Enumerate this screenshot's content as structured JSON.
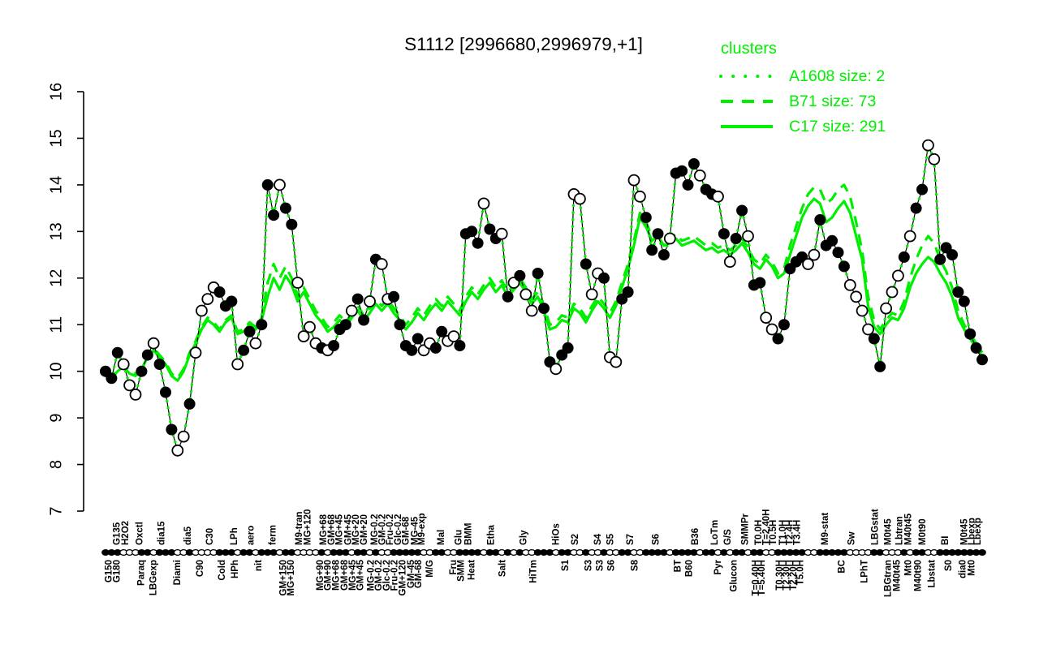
{
  "title": "S1112 [2996680,2996979,+1]",
  "legend": {
    "heading": "clusters",
    "items": [
      {
        "label": "A1608 size: 2",
        "style": "dotted"
      },
      {
        "label": "B71 size: 73",
        "style": "dashed"
      },
      {
        "label": "C17 size: 291",
        "style": "solid"
      }
    ]
  },
  "colors": {
    "cluster_green": "#00ee00",
    "series_black": "#000000",
    "point_open_fill": "#ffffff",
    "background": "#ffffff"
  },
  "chart_data": {
    "type": "line",
    "title": "S1112 [2996680,2996979,+1]",
    "ylim": [
      7,
      16
    ],
    "yticks": [
      7,
      8,
      9,
      10,
      11,
      12,
      13,
      14,
      15,
      16
    ],
    "grid": false,
    "legend_position": "top-right",
    "main_series": {
      "name": "S1112",
      "marker": "circle",
      "fills": "fffoooffofffoofoooofffoffofffoffoooofofffoffofoofffffooffooffffoffofofoofffoffoofoofooffooffffoffffoffofoffoffoofffffoofffffooooffooofoffooff",
      "values": [
        10.0,
        9.85,
        10.4,
        10.15,
        9.7,
        9.5,
        10.0,
        10.35,
        10.6,
        10.15,
        9.55,
        8.75,
        8.3,
        8.6,
        9.3,
        10.4,
        11.3,
        11.55,
        11.8,
        11.7,
        11.4,
        11.5,
        10.15,
        10.45,
        10.85,
        10.6,
        11.0,
        14.0,
        13.35,
        14.0,
        13.5,
        13.15,
        11.9,
        10.75,
        10.95,
        10.6,
        10.5,
        10.45,
        10.55,
        10.9,
        11.0,
        11.3,
        11.55,
        11.1,
        11.5,
        12.4,
        12.3,
        11.55,
        11.6,
        11.0,
        10.55,
        10.45,
        10.7,
        10.45,
        10.6,
        10.5,
        10.85,
        10.65,
        10.75,
        10.55,
        12.95,
        13.0,
        12.75,
        13.6,
        13.05,
        12.85,
        12.95,
        11.6,
        11.9,
        12.05,
        11.65,
        11.3,
        12.1,
        11.35,
        10.2,
        10.05,
        10.35,
        10.5,
        13.8,
        13.7,
        12.3,
        11.65,
        12.1,
        12.0,
        10.3,
        10.2,
        11.55,
        11.7,
        14.1,
        13.75,
        13.3,
        12.6,
        12.95,
        12.5,
        12.85,
        14.25,
        14.3,
        14.0,
        14.45,
        14.2,
        13.9,
        13.8,
        13.75,
        12.95,
        12.35,
        12.85,
        13.45,
        12.9,
        11.85,
        11.9,
        11.15,
        10.9,
        10.7,
        11.0,
        12.2,
        12.35,
        12.45,
        12.3,
        12.5,
        13.25,
        12.7,
        12.8,
        12.55,
        12.25,
        11.85,
        11.6,
        11.3,
        10.9,
        10.7,
        10.1,
        11.35,
        11.7,
        12.05,
        12.45,
        12.9,
        13.5,
        13.9,
        14.85,
        14.55,
        12.4,
        12.65,
        12.5,
        11.7,
        11.5,
        10.8,
        10.5,
        10.25
      ]
    },
    "series": [
      {
        "name": "A1608",
        "size": 2,
        "style": "dotted",
        "values": [
          10.0,
          9.85,
          10.4,
          10.15,
          9.7,
          9.5,
          10.0,
          10.35,
          10.6,
          10.15,
          9.55,
          8.75,
          8.3,
          8.6,
          9.3,
          10.4,
          11.3,
          11.55,
          11.8,
          11.7,
          11.4,
          11.5,
          10.15,
          10.45,
          10.85,
          10.6,
          11.0,
          14.0,
          13.35,
          14.0,
          13.5,
          13.15,
          11.9,
          10.75,
          10.95,
          10.6,
          10.5,
          10.45,
          10.55,
          10.9,
          11.0,
          11.3,
          11.55,
          11.1,
          11.5,
          12.4,
          12.3,
          11.55,
          11.6,
          11.0,
          10.55,
          10.45,
          10.7,
          10.45,
          10.6,
          10.5,
          10.85,
          10.65,
          10.75,
          10.55,
          12.95,
          13.0,
          12.75,
          13.6,
          13.05,
          12.85,
          12.95,
          11.6,
          11.9,
          12.05,
          11.65,
          11.3,
          12.1,
          11.35,
          10.2,
          10.05,
          10.35,
          10.5,
          13.8,
          13.7,
          12.3,
          11.65,
          12.1,
          12.0,
          10.3,
          10.2,
          11.55,
          11.7,
          14.1,
          13.75,
          13.3,
          12.6,
          12.95,
          12.5,
          12.85,
          14.25,
          14.3,
          14.0,
          14.45,
          14.2,
          13.9,
          13.8,
          13.75,
          12.95,
          12.35,
          12.85,
          13.45,
          12.9,
          11.85,
          11.9,
          11.15,
          10.9,
          10.7,
          11.0,
          12.2,
          12.35,
          12.45,
          12.3,
          12.5,
          13.25,
          12.7,
          12.8,
          12.55,
          12.25,
          11.85,
          11.6,
          11.3,
          10.9,
          10.7,
          10.1,
          11.35,
          11.7,
          12.05,
          12.45,
          12.9,
          13.5,
          13.9,
          14.85,
          14.55,
          12.4,
          12.65,
          12.5,
          11.7,
          11.5,
          10.8,
          10.5,
          10.25
        ]
      },
      {
        "name": "B71",
        "size": 73,
        "style": "dashed",
        "values": [
          9.95,
          9.9,
          10.05,
          10.15,
          10.0,
          9.95,
          10.1,
          10.35,
          10.5,
          10.35,
          10.2,
          9.95,
          9.85,
          10.05,
          10.4,
          10.65,
          10.95,
          11.15,
          11.05,
          10.9,
          11.1,
          11.2,
          10.85,
          10.9,
          11.05,
          10.95,
          11.15,
          11.9,
          12.3,
          12.0,
          12.25,
          12.0,
          11.6,
          11.8,
          11.55,
          11.3,
          11.15,
          10.95,
          11.05,
          11.2,
          11.05,
          11.25,
          11.4,
          11.2,
          11.35,
          11.55,
          11.4,
          11.55,
          11.35,
          11.2,
          11.0,
          11.15,
          11.35,
          11.2,
          11.4,
          11.55,
          11.4,
          11.6,
          11.45,
          11.3,
          11.6,
          11.8,
          11.65,
          11.85,
          12.0,
          11.8,
          11.95,
          11.7,
          11.85,
          12.0,
          11.8,
          11.55,
          11.7,
          11.4,
          11.0,
          11.05,
          11.2,
          11.15,
          11.45,
          11.35,
          11.15,
          11.4,
          11.6,
          11.45,
          11.25,
          11.5,
          11.9,
          12.3,
          12.8,
          13.4,
          13.2,
          12.9,
          13.0,
          12.8,
          12.85,
          12.95,
          12.8,
          12.85,
          12.9,
          12.8,
          12.7,
          12.75,
          12.65,
          12.7,
          12.6,
          12.7,
          12.85,
          12.65,
          12.4,
          12.3,
          12.5,
          12.35,
          12.1,
          12.2,
          12.7,
          13.1,
          13.5,
          13.8,
          13.95,
          13.9,
          13.6,
          13.7,
          13.9,
          14.0,
          13.75,
          13.2,
          12.6,
          11.6,
          11.1,
          10.9,
          11.1,
          11.25,
          11.2,
          11.5,
          12.0,
          12.4,
          12.7,
          12.9,
          12.75,
          12.4,
          12.15,
          11.8,
          11.3,
          11.0,
          10.8,
          10.6,
          10.4
        ]
      },
      {
        "name": "C17",
        "size": 291,
        "style": "solid",
        "values": [
          9.9,
          9.85,
          10.0,
          10.1,
          9.95,
          9.9,
          10.05,
          10.3,
          10.45,
          10.3,
          10.15,
          9.9,
          9.8,
          10.0,
          10.35,
          10.6,
          10.9,
          11.1,
          11.0,
          10.85,
          11.05,
          11.15,
          10.8,
          10.85,
          11.0,
          10.9,
          11.1,
          11.6,
          12.0,
          11.75,
          12.05,
          11.85,
          11.5,
          11.7,
          11.45,
          11.2,
          11.05,
          10.85,
          10.95,
          11.1,
          10.95,
          11.15,
          11.3,
          11.1,
          11.25,
          11.45,
          11.3,
          11.45,
          11.25,
          11.1,
          10.9,
          11.05,
          11.25,
          11.1,
          11.3,
          11.45,
          11.3,
          11.5,
          11.35,
          11.2,
          11.5,
          11.7,
          11.55,
          11.75,
          11.9,
          11.7,
          11.85,
          11.6,
          11.75,
          11.9,
          11.7,
          11.45,
          11.6,
          11.3,
          10.9,
          10.95,
          11.1,
          11.05,
          11.35,
          11.25,
          11.05,
          11.3,
          11.5,
          11.35,
          11.15,
          11.4,
          11.8,
          12.2,
          12.7,
          13.3,
          13.1,
          12.8,
          12.9,
          12.7,
          12.75,
          12.85,
          12.7,
          12.75,
          12.8,
          12.7,
          12.6,
          12.65,
          12.55,
          12.6,
          12.5,
          12.6,
          12.75,
          12.55,
          12.3,
          12.2,
          12.4,
          12.25,
          12.0,
          12.1,
          12.5,
          12.9,
          13.3,
          13.55,
          13.7,
          13.6,
          13.2,
          13.3,
          13.5,
          13.65,
          13.4,
          12.9,
          12.4,
          11.4,
          10.95,
          10.8,
          11.0,
          11.15,
          11.1,
          11.35,
          11.8,
          12.1,
          12.3,
          12.45,
          12.35,
          12.1,
          11.9,
          11.6,
          11.15,
          10.9,
          10.7,
          10.5,
          10.3
        ]
      }
    ],
    "x_labels_bottom": [
      [
        "G150",
        0.007
      ],
      [
        "G180",
        0.016
      ],
      [
        "Paraq",
        0.044
      ],
      [
        "LBGexp",
        0.058
      ],
      [
        "Diami",
        0.085
      ],
      [
        "C90",
        0.111
      ],
      [
        "Cold",
        0.136
      ],
      [
        "HPh",
        0.151
      ],
      [
        "nit",
        0.178
      ],
      [
        "GM+150",
        0.206
      ],
      [
        "MG+150",
        0.215
      ],
      [
        "MG+90",
        0.248
      ],
      [
        "GM+90",
        0.257
      ],
      [
        "MG+68",
        0.266
      ],
      [
        "GM+68",
        0.276
      ],
      [
        "MG+45",
        0.285
      ],
      [
        "GM+45",
        0.294
      ],
      [
        "MG-0.2",
        0.306
      ],
      [
        "GM-0.2",
        0.315
      ],
      [
        "Glc-0.2",
        0.324
      ],
      [
        "Fru-0.2",
        0.333
      ],
      [
        "GM+120",
        0.342
      ],
      [
        "GM-45",
        0.352
      ],
      [
        "GM-68",
        0.36
      ],
      [
        "M/G",
        0.373
      ],
      [
        "Fru",
        0.4
      ],
      [
        "SMM",
        0.409
      ],
      [
        "Heat",
        0.421
      ],
      [
        "Salt",
        0.456
      ],
      [
        "HiTm",
        0.491
      ],
      [
        "S1",
        0.528
      ],
      [
        "S3",
        0.554
      ],
      [
        "S3",
        0.567
      ],
      [
        "S6",
        0.58
      ],
      [
        "S8",
        0.607
      ],
      [
        "BT",
        0.656
      ],
      [
        "B60",
        0.669
      ],
      [
        "Pyr",
        0.702
      ],
      [
        "Glucon",
        0.72
      ],
      [
        "T=0.40H",
        0.745
      ],
      [
        "T=5.40H",
        0.752
      ],
      [
        "T0.30H",
        0.772
      ],
      [
        "T2.30H",
        0.78
      ],
      [
        "T2.20H",
        0.788
      ],
      [
        "T5.0H",
        0.796
      ],
      [
        "BC",
        0.843
      ],
      [
        "LPhT",
        0.869
      ],
      [
        "LBGtran",
        0.896
      ],
      [
        "M40t45",
        0.906
      ],
      [
        "Mt0",
        0.919
      ],
      [
        "M40t90",
        0.93
      ],
      [
        "Lbstat",
        0.946
      ],
      [
        "S0",
        0.965
      ],
      [
        "dia0",
        0.981
      ],
      [
        "Mt0",
        0.991
      ]
    ],
    "x_labels_top": [
      [
        "G135",
        0.016
      ],
      [
        "H2O2",
        0.026
      ],
      [
        "Oxctl",
        0.042
      ],
      [
        "dia15",
        0.067
      ],
      [
        "dia5",
        0.097
      ],
      [
        "C30",
        0.122
      ],
      [
        "LPh",
        0.15
      ],
      [
        "aero",
        0.169
      ],
      [
        "ferm",
        0.194
      ],
      [
        "M9-tran",
        0.224
      ],
      [
        "MG+120",
        0.234
      ],
      [
        "MG+68",
        0.252
      ],
      [
        "GM+68",
        0.261
      ],
      [
        "MG+45",
        0.27
      ],
      [
        "GM+45",
        0.28
      ],
      [
        "MG+20",
        0.289
      ],
      [
        "GM+20",
        0.298
      ],
      [
        "MG-0.2",
        0.31
      ],
      [
        "GM-0.2",
        0.319
      ],
      [
        "Fru-0.2",
        0.328
      ],
      [
        "Glc-0.2",
        0.337
      ],
      [
        "GM-68",
        0.346
      ],
      [
        "MG-45",
        0.356
      ],
      [
        "M9-exp",
        0.364
      ],
      [
        "Mal",
        0.386
      ],
      [
        "Glu",
        0.406
      ],
      [
        "BMM",
        0.417
      ],
      [
        "Etha",
        0.443
      ],
      [
        "Gly",
        0.48
      ],
      [
        "HiOs",
        0.517
      ],
      [
        "S2",
        0.539
      ],
      [
        "S4",
        0.565
      ],
      [
        "S5",
        0.579
      ],
      [
        "S7",
        0.602
      ],
      [
        "S6",
        0.631
      ],
      [
        "B36",
        0.676
      ],
      [
        "LoTm",
        0.698
      ],
      [
        "G/S",
        0.713
      ],
      [
        "SMMPr",
        0.733
      ],
      [
        "T0.0H",
        0.748
      ],
      [
        "T=2.40H",
        0.757
      ],
      [
        "T0.5H",
        0.765
      ],
      [
        "T1.0H",
        0.776
      ],
      [
        "T2.4H",
        0.784
      ],
      [
        "T3.4H",
        0.792
      ],
      [
        "M9-stat",
        0.824
      ],
      [
        "Sw",
        0.854
      ],
      [
        "LBGstat",
        0.881
      ],
      [
        "M0t45",
        0.896
      ],
      [
        "Lbtran",
        0.909
      ],
      [
        "M40t45",
        0.919
      ],
      [
        "M0t90",
        0.935
      ],
      [
        "BI",
        0.961
      ],
      [
        "M0t45",
        0.983
      ],
      [
        "Lbexp",
        0.991
      ],
      [
        "Lbexp",
        0.998
      ]
    ]
  }
}
